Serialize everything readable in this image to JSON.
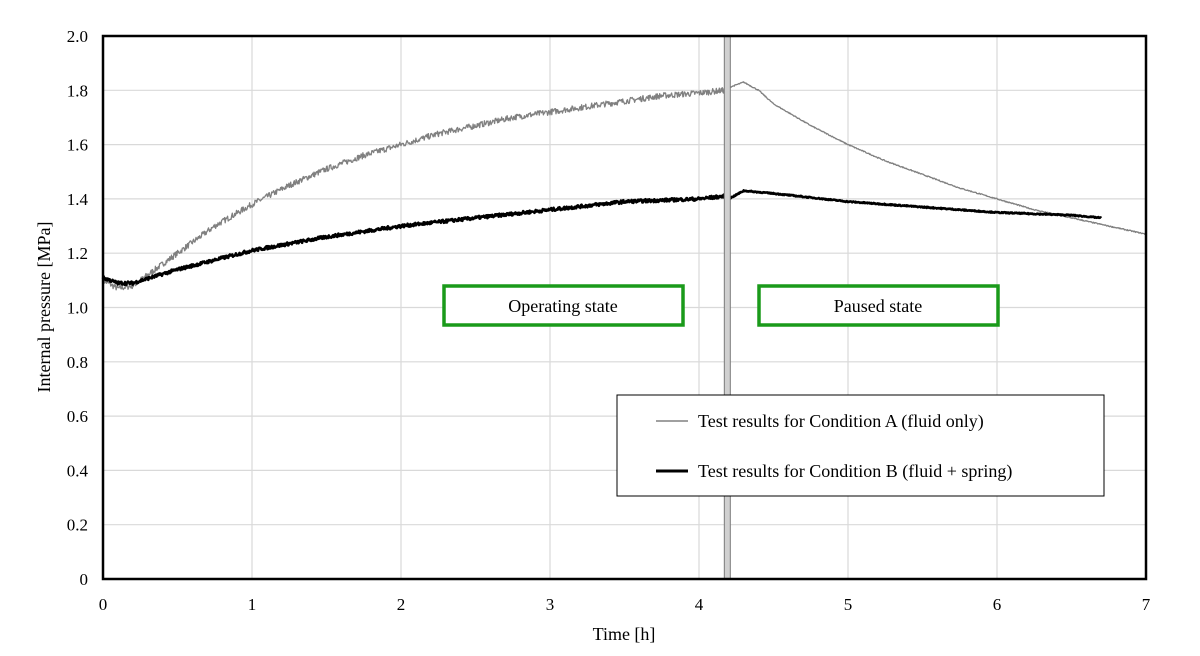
{
  "chart_data": {
    "type": "line",
    "title": "",
    "xlabel": "Time [h]",
    "ylabel": "Internal pressure [MPa]",
    "xlim": [
      0,
      7
    ],
    "ylim": [
      0,
      2.0
    ],
    "xticks": [
      "0",
      "1",
      "2",
      "3",
      "4",
      "5",
      "6",
      "7"
    ],
    "yticks": [
      "0",
      "0.2",
      "0.4",
      "0.6",
      "0.8",
      "1.0",
      "1.2",
      "1.4",
      "1.6",
      "1.8",
      "2.0"
    ],
    "grid": true,
    "legend_position": "lower-right",
    "vertical_marker_x": 4.19,
    "annotations": [
      "Operating state",
      "Paused state"
    ],
    "annotation_color": "#1a9a1a",
    "series": [
      {
        "name": "Test results for Condition A (fluid only)",
        "color": "#808080",
        "x": [
          0,
          0.1,
          0.2,
          0.3,
          0.5,
          0.75,
          1,
          1.25,
          1.5,
          1.75,
          2,
          2.25,
          2.5,
          2.75,
          3,
          3.25,
          3.5,
          3.75,
          4,
          4.17,
          4.2,
          4.3,
          4.4,
          4.5,
          4.75,
          5,
          5.25,
          5.5,
          5.75,
          6,
          6.25,
          6.5,
          6.75,
          7
        ],
        "y": [
          1.1,
          1.07,
          1.08,
          1.12,
          1.2,
          1.3,
          1.38,
          1.45,
          1.51,
          1.56,
          1.6,
          1.64,
          1.67,
          1.7,
          1.72,
          1.74,
          1.76,
          1.78,
          1.79,
          1.8,
          1.81,
          1.83,
          1.8,
          1.75,
          1.67,
          1.6,
          1.54,
          1.49,
          1.44,
          1.4,
          1.36,
          1.33,
          1.3,
          1.27
        ]
      },
      {
        "name": "Test results for Condition B (fluid + spring)",
        "color": "#000000",
        "x": [
          0,
          0.1,
          0.2,
          0.5,
          1,
          1.5,
          2,
          2.5,
          3,
          3.5,
          4,
          4.17,
          4.2,
          4.3,
          4.5,
          5,
          5.5,
          6,
          6.5,
          6.7
        ],
        "y": [
          1.11,
          1.09,
          1.09,
          1.14,
          1.21,
          1.26,
          1.3,
          1.33,
          1.36,
          1.39,
          1.4,
          1.41,
          1.4,
          1.43,
          1.42,
          1.39,
          1.37,
          1.35,
          1.34,
          1.33
        ]
      }
    ]
  }
}
